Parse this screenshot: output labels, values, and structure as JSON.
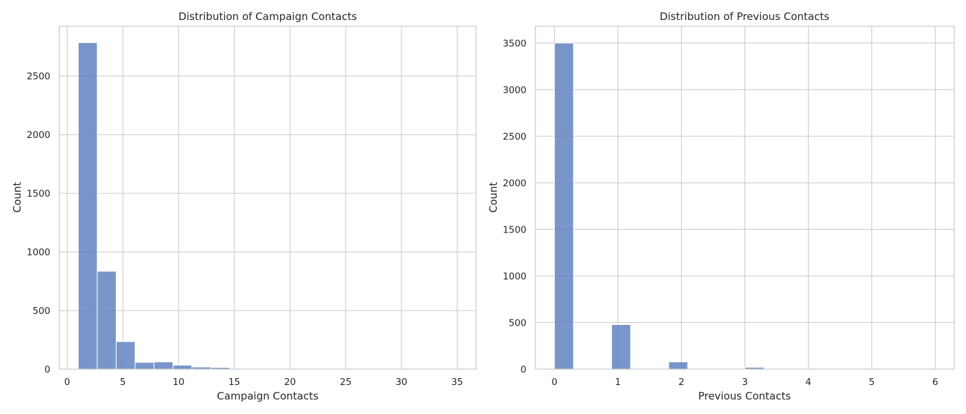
{
  "chart_data": [
    {
      "type": "bar",
      "title": "Distribution of Campaign Contacts",
      "xlabel": "Campaign Contacts",
      "ylabel": "Count",
      "xlim": [
        -0.7,
        36.7
      ],
      "ylim": [
        0,
        2925
      ],
      "xticks": [
        0,
        5,
        10,
        15,
        20,
        25,
        30,
        35
      ],
      "yticks": [
        0,
        500,
        1000,
        1500,
        2000,
        2500
      ],
      "grid": true,
      "color": "#5a7fbd",
      "bins": [
        {
          "x0": 1.0,
          "x1": 2.7,
          "count": 2785
        },
        {
          "x0": 2.7,
          "x1": 4.4,
          "count": 835
        },
        {
          "x0": 4.4,
          "x1": 6.1,
          "count": 235
        },
        {
          "x0": 6.1,
          "x1": 7.8,
          "count": 58
        },
        {
          "x0": 7.8,
          "x1": 9.5,
          "count": 62
        },
        {
          "x0": 9.5,
          "x1": 11.2,
          "count": 34
        },
        {
          "x0": 11.2,
          "x1": 12.9,
          "count": 18
        },
        {
          "x0": 12.9,
          "x1": 14.6,
          "count": 14
        },
        {
          "x0": 14.6,
          "x1": 16.3,
          "count": 5
        },
        {
          "x0": 16.3,
          "x1": 18.0,
          "count": 4
        },
        {
          "x0": 18.0,
          "x1": 19.7,
          "count": 3
        },
        {
          "x0": 19.7,
          "x1": 21.4,
          "count": 3
        },
        {
          "x0": 21.4,
          "x1": 23.1,
          "count": 2
        },
        {
          "x0": 23.1,
          "x1": 24.8,
          "count": 2
        },
        {
          "x0": 24.8,
          "x1": 26.5,
          "count": 1
        },
        {
          "x0": 26.5,
          "x1": 28.2,
          "count": 1
        },
        {
          "x0": 28.2,
          "x1": 29.9,
          "count": 1
        },
        {
          "x0": 29.9,
          "x1": 31.6,
          "count": 1
        },
        {
          "x0": 31.6,
          "x1": 33.3,
          "count": 1
        },
        {
          "x0": 33.3,
          "x1": 35.0,
          "count": 1
        }
      ]
    },
    {
      "type": "bar",
      "title": "Distribution of Previous Contacts",
      "xlabel": "Previous Contacts",
      "ylabel": "Count",
      "xlim": [
        -0.3,
        6.3
      ],
      "ylim": [
        0,
        3680
      ],
      "xticks": [
        0,
        1,
        2,
        3,
        4,
        5,
        6
      ],
      "yticks": [
        0,
        500,
        1000,
        1500,
        2000,
        2500,
        3000,
        3500
      ],
      "grid": true,
      "color": "#5a7fbd",
      "bins": [
        {
          "x0": 0.0,
          "x1": 0.3,
          "count": 3500
        },
        {
          "x0": 0.3,
          "x1": 0.6,
          "count": 0
        },
        {
          "x0": 0.6,
          "x1": 0.9,
          "count": 0
        },
        {
          "x0": 0.9,
          "x1": 1.2,
          "count": 478
        },
        {
          "x0": 1.2,
          "x1": 1.5,
          "count": 0
        },
        {
          "x0": 1.5,
          "x1": 1.8,
          "count": 0
        },
        {
          "x0": 1.8,
          "x1": 2.1,
          "count": 78
        },
        {
          "x0": 2.1,
          "x1": 2.4,
          "count": 0
        },
        {
          "x0": 2.4,
          "x1": 2.7,
          "count": 0
        },
        {
          "x0": 2.7,
          "x1": 3.0,
          "count": 0
        },
        {
          "x0": 3.0,
          "x1": 3.3,
          "count": 20
        },
        {
          "x0": 3.3,
          "x1": 3.6,
          "count": 0
        },
        {
          "x0": 3.6,
          "x1": 3.9,
          "count": 0
        },
        {
          "x0": 3.9,
          "x1": 4.2,
          "count": 3
        },
        {
          "x0": 4.2,
          "x1": 4.5,
          "count": 0
        },
        {
          "x0": 4.5,
          "x1": 4.8,
          "count": 0
        },
        {
          "x0": 4.8,
          "x1": 5.1,
          "count": 2
        },
        {
          "x0": 5.1,
          "x1": 5.4,
          "count": 0
        },
        {
          "x0": 5.4,
          "x1": 5.7,
          "count": 0
        },
        {
          "x0": 5.7,
          "x1": 6.0,
          "count": 1
        }
      ]
    }
  ]
}
